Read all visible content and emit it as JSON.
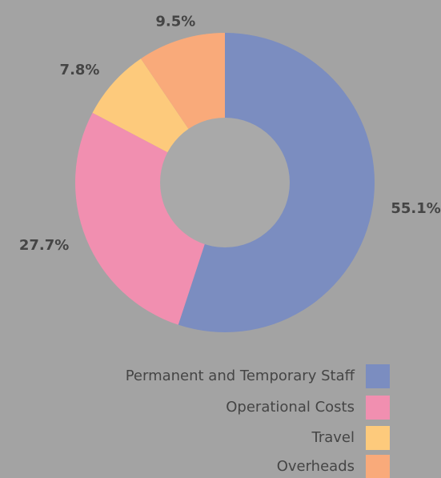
{
  "chart_data": {
    "type": "donut",
    "categories": [
      "Permanent and Temporary Staff",
      "Operational Costs",
      "Travel",
      "Overheads"
    ],
    "values": [
      55.1,
      27.7,
      7.8,
      9.5
    ],
    "value_labels": [
      "55.1%",
      "27.7%",
      "7.8%",
      "9.5%"
    ],
    "colors": [
      "#7b8dc0",
      "#f18fb0",
      "#fdca7c",
      "#f9aa7a"
    ],
    "legend": "bottom-right"
  }
}
